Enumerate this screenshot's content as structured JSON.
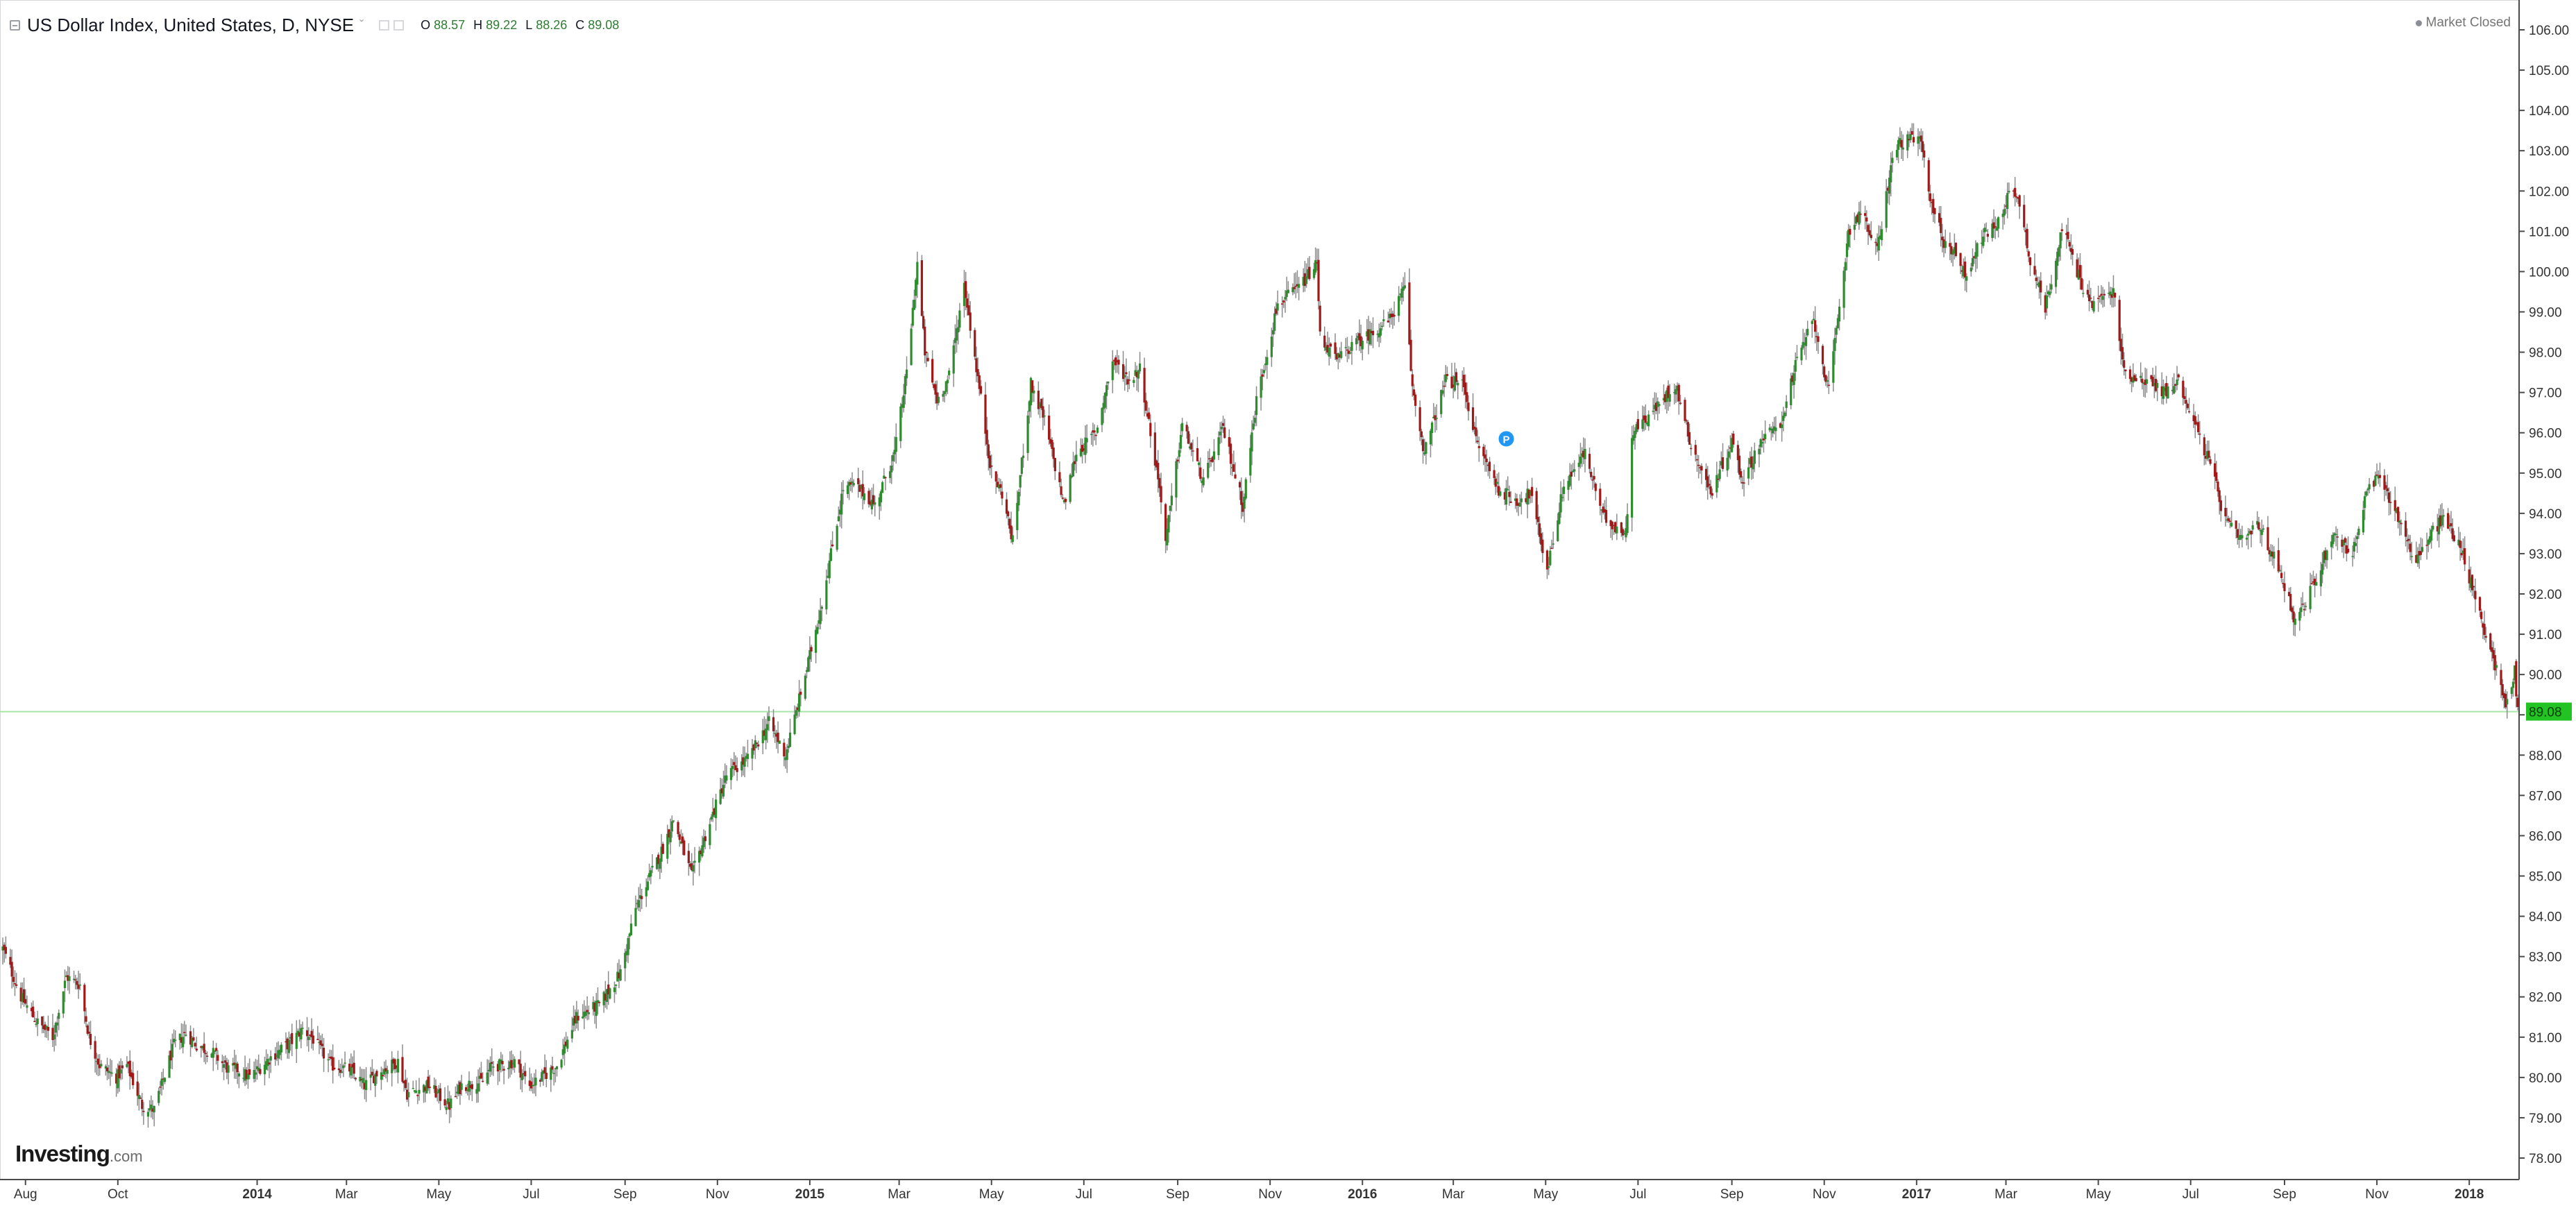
{
  "header": {
    "title": "US Dollar Index, United States, D, NYSE",
    "caret": "ˇ",
    "ohlc": {
      "o_label": "O",
      "o_value": "88.57",
      "h_label": "H",
      "h_value": "89.22",
      "l_label": "L",
      "l_value": "88.26",
      "c_label": "C",
      "c_value": "89.08"
    },
    "status_text": "Market Closed"
  },
  "logo": {
    "main": "Investing",
    "suffix": ".com"
  },
  "colors": {
    "up": "#2e8b2e",
    "down": "#a01818",
    "wick": "#8c8c8c",
    "last_price_bg": "#22c322",
    "last_price_line": "#a9e5a9",
    "axis_line": "#4a4a4a",
    "tick_text": "#333333"
  },
  "chart_data": {
    "type": "line",
    "title": "US Dollar Index, United States, D, NYSE",
    "xlabel": "",
    "ylabel": "",
    "x_range": [
      "2013-07-17",
      "2018-02-02"
    ],
    "ylim": [
      77.65,
      106.65
    ],
    "y_ticks": [
      "78.00",
      "79.00",
      "80.00",
      "81.00",
      "82.00",
      "83.00",
      "84.00",
      "85.00",
      "86.00",
      "87.00",
      "88.00",
      "89.00",
      "90.00",
      "91.00",
      "92.00",
      "93.00",
      "94.00",
      "95.00",
      "96.00",
      "97.00",
      "98.00",
      "99.00",
      "100.00",
      "101.00",
      "102.00",
      "103.00",
      "104.00",
      "105.00",
      "106.00"
    ],
    "x_ticks": [
      {
        "date": "2013-08-01",
        "label": "Aug",
        "bold": false
      },
      {
        "date": "2013-10-01",
        "label": "Oct",
        "bold": false
      },
      {
        "date": "2014-01-01",
        "label": "2014",
        "bold": true
      },
      {
        "date": "2014-03-01",
        "label": "Mar",
        "bold": false
      },
      {
        "date": "2014-05-01",
        "label": "May",
        "bold": false
      },
      {
        "date": "2014-07-01",
        "label": "Jul",
        "bold": false
      },
      {
        "date": "2014-09-01",
        "label": "Sep",
        "bold": false
      },
      {
        "date": "2014-11-01",
        "label": "Nov",
        "bold": false
      },
      {
        "date": "2015-01-01",
        "label": "2015",
        "bold": true
      },
      {
        "date": "2015-03-01",
        "label": "Mar",
        "bold": false
      },
      {
        "date": "2015-05-01",
        "label": "May",
        "bold": false
      },
      {
        "date": "2015-07-01",
        "label": "Jul",
        "bold": false
      },
      {
        "date": "2015-09-01",
        "label": "Sep",
        "bold": false
      },
      {
        "date": "2015-11-01",
        "label": "Nov",
        "bold": false
      },
      {
        "date": "2016-01-01",
        "label": "2016",
        "bold": true
      },
      {
        "date": "2016-03-01",
        "label": "Mar",
        "bold": false
      },
      {
        "date": "2016-05-01",
        "label": "May",
        "bold": false
      },
      {
        "date": "2016-07-01",
        "label": "Jul",
        "bold": false
      },
      {
        "date": "2016-09-01",
        "label": "Sep",
        "bold": false
      },
      {
        "date": "2016-11-01",
        "label": "Nov",
        "bold": false
      },
      {
        "date": "2017-01-01",
        "label": "2017",
        "bold": true
      },
      {
        "date": "2017-03-01",
        "label": "Mar",
        "bold": false
      },
      {
        "date": "2017-05-01",
        "label": "May",
        "bold": false
      },
      {
        "date": "2017-07-01",
        "label": "Jul",
        "bold": false
      },
      {
        "date": "2017-09-01",
        "label": "Sep",
        "bold": false
      },
      {
        "date": "2017-11-01",
        "label": "Nov",
        "bold": false
      },
      {
        "date": "2018-01-01",
        "label": "2018",
        "bold": true
      }
    ],
    "last_price": 89.08,
    "last_price_label": "89.08",
    "grid": false,
    "legend": "none",
    "marker": {
      "date": "2016-04-05",
      "value": 95.85,
      "label": "P"
    },
    "series": [
      {
        "style": "candlestick-like close path",
        "points": [
          [
            "2013-07-17",
            83.2
          ],
          [
            "2013-07-29",
            82.0
          ],
          [
            "2013-08-08",
            81.4
          ],
          [
            "2013-08-19",
            81.0
          ],
          [
            "2013-08-28",
            82.5
          ],
          [
            "2013-09-06",
            82.3
          ],
          [
            "2013-09-12",
            81.0
          ],
          [
            "2013-09-19",
            80.3
          ],
          [
            "2013-09-30",
            80.0
          ],
          [
            "2013-10-07",
            80.3
          ],
          [
            "2013-10-17",
            79.3
          ],
          [
            "2013-10-25",
            79.2
          ],
          [
            "2013-11-07",
            80.8
          ],
          [
            "2013-11-15",
            81.1
          ],
          [
            "2013-11-22",
            80.8
          ],
          [
            "2013-12-03",
            80.6
          ],
          [
            "2013-12-13",
            80.2
          ],
          [
            "2013-12-19",
            80.2
          ],
          [
            "2013-12-27",
            80.0
          ],
          [
            "2014-01-10",
            80.5
          ],
          [
            "2014-01-24",
            80.9
          ],
          [
            "2014-01-31",
            81.2
          ],
          [
            "2014-02-06",
            81.0
          ],
          [
            "2014-02-19",
            80.3
          ],
          [
            "2014-03-03",
            80.2
          ],
          [
            "2014-03-13",
            79.8
          ],
          [
            "2014-03-21",
            80.1
          ],
          [
            "2014-04-04",
            80.4
          ],
          [
            "2014-04-10",
            79.6
          ],
          [
            "2014-04-17",
            79.7
          ],
          [
            "2014-04-24",
            79.8
          ],
          [
            "2014-05-08",
            79.3
          ],
          [
            "2014-05-16",
            79.8
          ],
          [
            "2014-05-30",
            79.9
          ],
          [
            "2014-06-05",
            80.3
          ],
          [
            "2014-06-13",
            80.3
          ],
          [
            "2014-06-20",
            80.4
          ],
          [
            "2014-06-30",
            79.8
          ],
          [
            "2014-07-08",
            80.0
          ],
          [
            "2014-07-18",
            80.3
          ],
          [
            "2014-07-31",
            81.5
          ],
          [
            "2014-08-15",
            81.8
          ],
          [
            "2014-08-29",
            82.6
          ],
          [
            "2014-09-08",
            84.2
          ],
          [
            "2014-09-26",
            85.7
          ],
          [
            "2014-10-03",
            86.4
          ],
          [
            "2014-10-15",
            85.0
          ],
          [
            "2014-10-24",
            86.0
          ],
          [
            "2014-11-07",
            87.5
          ],
          [
            "2014-11-21",
            87.9
          ],
          [
            "2014-12-05",
            88.8
          ],
          [
            "2014-12-16",
            88.0
          ],
          [
            "2014-12-31",
            90.3
          ],
          [
            "2015-01-09",
            91.8
          ],
          [
            "2015-01-23",
            94.6
          ],
          [
            "2015-01-30",
            94.7
          ],
          [
            "2015-02-06",
            94.5
          ],
          [
            "2015-02-13",
            94.2
          ],
          [
            "2015-02-26",
            95.5
          ],
          [
            "2015-03-06",
            97.5
          ],
          [
            "2015-03-13",
            100.2
          ],
          [
            "2015-03-18",
            98.0
          ],
          [
            "2015-03-26",
            96.8
          ],
          [
            "2015-04-03",
            97.4
          ],
          [
            "2015-04-13",
            99.7
          ],
          [
            "2015-04-23",
            97.1
          ],
          [
            "2015-05-01",
            95.0
          ],
          [
            "2015-05-08",
            94.5
          ],
          [
            "2015-05-15",
            93.3
          ],
          [
            "2015-05-27",
            97.2
          ],
          [
            "2015-06-05",
            96.3
          ],
          [
            "2015-06-18",
            94.2
          ],
          [
            "2015-06-26",
            95.5
          ],
          [
            "2015-07-09",
            96.0
          ],
          [
            "2015-07-20",
            97.8
          ],
          [
            "2015-07-31",
            97.3
          ],
          [
            "2015-08-07",
            97.6
          ],
          [
            "2015-08-21",
            94.4
          ],
          [
            "2015-08-24",
            93.3
          ],
          [
            "2015-09-04",
            96.2
          ],
          [
            "2015-09-18",
            94.8
          ],
          [
            "2015-10-01",
            96.1
          ],
          [
            "2015-10-14",
            94.2
          ],
          [
            "2015-10-23",
            96.8
          ],
          [
            "2015-11-06",
            99.2
          ],
          [
            "2015-11-20",
            99.6
          ],
          [
            "2015-12-02",
            100.2
          ],
          [
            "2015-12-04",
            98.4
          ],
          [
            "2015-12-15",
            97.8
          ],
          [
            "2015-12-23",
            98.1
          ],
          [
            "2016-01-08",
            98.5
          ],
          [
            "2016-01-19",
            98.8
          ],
          [
            "2016-01-29",
            99.6
          ],
          [
            "2016-02-03",
            97.1
          ],
          [
            "2016-02-11",
            95.5
          ],
          [
            "2016-02-25",
            97.3
          ],
          [
            "2016-03-08",
            97.2
          ],
          [
            "2016-03-16",
            95.8
          ],
          [
            "2016-03-31",
            94.6
          ],
          [
            "2016-04-12",
            94.3
          ],
          [
            "2016-04-21",
            94.5
          ],
          [
            "2016-05-02",
            92.6
          ],
          [
            "2016-05-13",
            94.7
          ],
          [
            "2016-05-27",
            95.5
          ],
          [
            "2016-06-08",
            93.9
          ],
          [
            "2016-06-23",
            93.5
          ],
          [
            "2016-06-27",
            96.0
          ],
          [
            "2016-07-15",
            96.7
          ],
          [
            "2016-07-26",
            97.2
          ],
          [
            "2016-08-05",
            95.7
          ],
          [
            "2016-08-18",
            94.5
          ],
          [
            "2016-09-01",
            95.8
          ],
          [
            "2016-09-08",
            94.8
          ],
          [
            "2016-09-20",
            95.8
          ],
          [
            "2016-10-03",
            96.2
          ],
          [
            "2016-10-14",
            97.8
          ],
          [
            "2016-10-25",
            98.8
          ],
          [
            "2016-11-04",
            97.0
          ],
          [
            "2016-11-09",
            98.5
          ],
          [
            "2016-11-17",
            101.0
          ],
          [
            "2016-11-25",
            101.5
          ],
          [
            "2016-12-06",
            100.5
          ],
          [
            "2016-12-15",
            102.6
          ],
          [
            "2016-12-20",
            103.2
          ],
          [
            "2017-01-03",
            103.3
          ],
          [
            "2017-01-11",
            101.7
          ],
          [
            "2017-01-19",
            100.7
          ],
          [
            "2017-01-27",
            100.5
          ],
          [
            "2017-02-02",
            99.9
          ],
          [
            "2017-02-14",
            100.9
          ],
          [
            "2017-02-24",
            101.2
          ],
          [
            "2017-03-02",
            101.9
          ],
          [
            "2017-03-09",
            101.9
          ],
          [
            "2017-03-17",
            100.3
          ],
          [
            "2017-03-27",
            99.1
          ],
          [
            "2017-04-07",
            101.1
          ],
          [
            "2017-04-19",
            99.8
          ],
          [
            "2017-04-26",
            99.2
          ],
          [
            "2017-05-11",
            99.5
          ],
          [
            "2017-05-18",
            97.5
          ],
          [
            "2017-06-01",
            97.3
          ],
          [
            "2017-06-15",
            97.0
          ],
          [
            "2017-06-23",
            97.3
          ],
          [
            "2017-07-06",
            96.0
          ],
          [
            "2017-07-14",
            95.2
          ],
          [
            "2017-07-24",
            93.8
          ],
          [
            "2017-08-04",
            93.3
          ],
          [
            "2017-08-15",
            93.7
          ],
          [
            "2017-08-30",
            92.5
          ],
          [
            "2017-09-08",
            91.3
          ],
          [
            "2017-09-20",
            92.2
          ],
          [
            "2017-10-03",
            93.5
          ],
          [
            "2017-10-16",
            93.0
          ],
          [
            "2017-10-26",
            94.6
          ],
          [
            "2017-11-03",
            94.9
          ],
          [
            "2017-11-14",
            94.0
          ],
          [
            "2017-11-27",
            92.8
          ],
          [
            "2017-12-07",
            93.5
          ],
          [
            "2017-12-15",
            93.9
          ],
          [
            "2017-12-26",
            93.2
          ],
          [
            "2018-01-05",
            91.9
          ],
          [
            "2018-01-12",
            91.0
          ],
          [
            "2018-01-17",
            90.4
          ],
          [
            "2018-01-25",
            89.2
          ],
          [
            "2018-01-31",
            90.1
          ],
          [
            "2018-02-02",
            89.08
          ]
        ]
      }
    ]
  }
}
